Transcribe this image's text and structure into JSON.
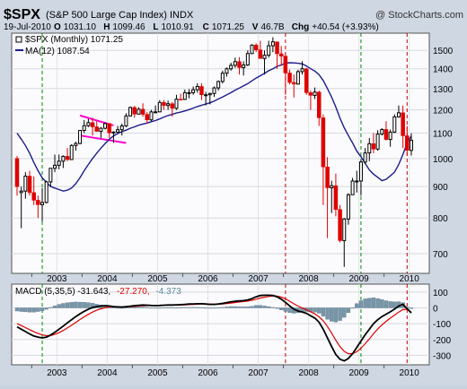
{
  "header": {
    "symbol": "$SPX",
    "name": "(S&P 500 Large Cap Index)",
    "exchange": "INDX",
    "watermark": "@ StockCharts.com",
    "date": "19-Jul-2010",
    "ohlc": [
      {
        "k": "O",
        "v": "1031.10"
      },
      {
        "k": "H",
        "v": "1099.46"
      },
      {
        "k": "L",
        "v": "1010.91"
      },
      {
        "k": "C",
        "v": "1071.25"
      },
      {
        "k": "V",
        "v": "46.7B"
      },
      {
        "k": "Chg",
        "v": "+40.54 (+3.93%)"
      }
    ]
  },
  "legend": {
    "price": "$SPX (Monthly) 1071.25",
    "ma": "MA(12) 1087.54"
  },
  "macd_legend": {
    "label": "MACD (5,35,5) -31.643,",
    "signal": "-27.270,",
    "hist": "-4.373"
  },
  "x_labels": [
    "2003",
    "2004",
    "2005",
    "2006",
    "2007",
    "2008",
    "2009",
    "2010"
  ],
  "y_labels": [
    "1500",
    "1400",
    "1300",
    "1200",
    "1100",
    "1000",
    "900",
    "800",
    "700"
  ],
  "macd_y_labels": [
    "100",
    "0",
    "-100",
    "-200",
    "-300"
  ],
  "colors": {
    "up": "#000000",
    "down": "#e00000",
    "ma": "#1c1c8c",
    "macd": "#000000",
    "signal": "#e00000",
    "histogram": "#7896a8",
    "trendline": "#ff00cc",
    "green_marker": "#008800",
    "red_marker": "#cc0000",
    "panel_bg": "#fbfbfd"
  },
  "chart_data": [
    {
      "type": "candlestick",
      "title": "$SPX (Monthly)",
      "scale": "log",
      "ylim": [
        650,
        1600
      ],
      "grid": true,
      "legend_position": "top-left",
      "x": [
        "2002-09",
        "2002-10",
        "2002-11",
        "2002-12",
        "2003-01",
        "2003-02",
        "2003-03",
        "2003-04",
        "2003-05",
        "2003-06",
        "2003-07",
        "2003-08",
        "2003-09",
        "2003-10",
        "2003-11",
        "2003-12",
        "2004-01",
        "2004-02",
        "2004-03",
        "2004-04",
        "2004-05",
        "2004-06",
        "2004-07",
        "2004-08",
        "2004-09",
        "2004-10",
        "2004-11",
        "2004-12",
        "2005-01",
        "2005-02",
        "2005-03",
        "2005-04",
        "2005-05",
        "2005-06",
        "2005-07",
        "2005-08",
        "2005-09",
        "2005-10",
        "2005-11",
        "2005-12",
        "2006-01",
        "2006-02",
        "2006-03",
        "2006-04",
        "2006-05",
        "2006-06",
        "2006-07",
        "2006-08",
        "2006-09",
        "2006-10",
        "2006-11",
        "2006-12",
        "2007-01",
        "2007-02",
        "2007-03",
        "2007-04",
        "2007-05",
        "2007-06",
        "2007-07",
        "2007-08",
        "2007-09",
        "2007-10",
        "2007-11",
        "2007-12",
        "2008-01",
        "2008-02",
        "2008-03",
        "2008-04",
        "2008-05",
        "2008-06",
        "2008-07",
        "2008-08",
        "2008-09",
        "2008-10",
        "2008-11",
        "2008-12",
        "2009-01",
        "2009-02",
        "2009-03",
        "2009-04",
        "2009-05",
        "2009-06",
        "2009-07",
        "2009-08",
        "2009-09",
        "2009-10",
        "2009-11",
        "2009-12",
        "2010-01",
        "2010-02",
        "2010-03",
        "2010-04",
        "2010-05",
        "2010-06",
        "2010-07"
      ],
      "ohlc": [
        [
          1000,
          1010,
          870,
          900
        ],
        [
          880,
          900,
          770,
          885
        ],
        [
          885,
          950,
          860,
          936
        ],
        [
          936,
          955,
          870,
          880
        ],
        [
          880,
          935,
          840,
          855
        ],
        [
          855,
          870,
          800,
          841
        ],
        [
          841,
          895,
          790,
          848
        ],
        [
          848,
          920,
          845,
          916
        ],
        [
          916,
          965,
          900,
          964
        ],
        [
          964,
          1015,
          950,
          975
        ],
        [
          975,
          1015,
          960,
          990
        ],
        [
          990,
          1012,
          965,
          1008
        ],
        [
          1008,
          1040,
          990,
          996
        ],
        [
          996,
          1055,
          995,
          1050
        ],
        [
          1050,
          1065,
          1030,
          1058
        ],
        [
          1058,
          1112,
          1055,
          1111
        ],
        [
          1111,
          1155,
          1100,
          1131
        ],
        [
          1131,
          1160,
          1125,
          1144
        ],
        [
          1144,
          1165,
          1090,
          1126
        ],
        [
          1126,
          1150,
          1105,
          1107
        ],
        [
          1107,
          1125,
          1080,
          1120
        ],
        [
          1120,
          1145,
          1115,
          1140
        ],
        [
          1140,
          1142,
          1080,
          1101
        ],
        [
          1101,
          1108,
          1060,
          1104
        ],
        [
          1104,
          1130,
          1100,
          1114
        ],
        [
          1114,
          1140,
          1090,
          1130
        ],
        [
          1130,
          1185,
          1125,
          1173
        ],
        [
          1173,
          1215,
          1170,
          1211
        ],
        [
          1211,
          1218,
          1165,
          1181
        ],
        [
          1181,
          1212,
          1180,
          1203
        ],
        [
          1203,
          1230,
          1170,
          1180
        ],
        [
          1180,
          1190,
          1140,
          1156
        ],
        [
          1156,
          1200,
          1150,
          1191
        ],
        [
          1191,
          1220,
          1190,
          1191
        ],
        [
          1191,
          1245,
          1190,
          1234
        ],
        [
          1234,
          1245,
          1200,
          1220
        ],
        [
          1220,
          1243,
          1200,
          1228
        ],
        [
          1228,
          1235,
          1170,
          1207
        ],
        [
          1207,
          1270,
          1200,
          1249
        ],
        [
          1249,
          1275,
          1245,
          1248
        ],
        [
          1248,
          1295,
          1245,
          1280
        ],
        [
          1280,
          1297,
          1253,
          1280
        ],
        [
          1280,
          1310,
          1270,
          1294
        ],
        [
          1294,
          1326,
          1280,
          1310
        ],
        [
          1310,
          1326,
          1245,
          1270
        ],
        [
          1270,
          1284,
          1220,
          1270
        ],
        [
          1270,
          1280,
          1225,
          1276
        ],
        [
          1276,
          1310,
          1260,
          1303
        ],
        [
          1303,
          1340,
          1290,
          1335
        ],
        [
          1335,
          1390,
          1325,
          1377
        ],
        [
          1377,
          1407,
          1360,
          1400
        ],
        [
          1400,
          1432,
          1390,
          1418
        ],
        [
          1418,
          1460,
          1405,
          1438
        ],
        [
          1438,
          1462,
          1370,
          1406
        ],
        [
          1406,
          1440,
          1365,
          1420
        ],
        [
          1420,
          1500,
          1415,
          1482
        ],
        [
          1482,
          1535,
          1480,
          1530
        ],
        [
          1530,
          1540,
          1490,
          1503
        ],
        [
          1503,
          1555,
          1455,
          1455
        ],
        [
          1455,
          1500,
          1370,
          1473
        ],
        [
          1473,
          1555,
          1460,
          1526
        ],
        [
          1526,
          1576,
          1490,
          1549
        ],
        [
          1549,
          1550,
          1400,
          1481
        ],
        [
          1481,
          1525,
          1415,
          1468
        ],
        [
          1468,
          1472,
          1270,
          1378
        ],
        [
          1378,
          1396,
          1320,
          1330
        ],
        [
          1330,
          1370,
          1257,
          1322
        ],
        [
          1322,
          1395,
          1320,
          1385
        ],
        [
          1385,
          1440,
          1370,
          1400
        ],
        [
          1400,
          1405,
          1270,
          1280
        ],
        [
          1280,
          1290,
          1200,
          1267
        ],
        [
          1267,
          1305,
          1250,
          1283
        ],
        [
          1283,
          1290,
          1130,
          1165
        ],
        [
          1165,
          1180,
          840,
          969
        ],
        [
          969,
          1005,
          742,
          896
        ],
        [
          896,
          920,
          815,
          903
        ],
        [
          903,
          945,
          805,
          826
        ],
        [
          826,
          840,
          730,
          735
        ],
        [
          735,
          800,
          666,
          797
        ],
        [
          797,
          878,
          780,
          873
        ],
        [
          873,
          930,
          875,
          919
        ],
        [
          919,
          955,
          880,
          919
        ],
        [
          919,
          995,
          870,
          987
        ],
        [
          987,
          1040,
          980,
          1021
        ],
        [
          1021,
          1080,
          990,
          1057
        ],
        [
          1057,
          1100,
          1020,
          1036
        ],
        [
          1036,
          1112,
          1030,
          1096
        ],
        [
          1096,
          1120,
          1090,
          1115
        ],
        [
          1115,
          1150,
          1070,
          1074
        ],
        [
          1074,
          1115,
          1045,
          1104
        ],
        [
          1104,
          1180,
          1100,
          1169
        ],
        [
          1169,
          1220,
          1165,
          1187
        ],
        [
          1187,
          1220,
          1040,
          1089
        ],
        [
          1089,
          1130,
          1010,
          1031
        ],
        [
          1031,
          1099,
          1011,
          1071
        ]
      ],
      "series": [
        {
          "name": "MA(12)",
          "values": [
            1100,
            1075,
            1050,
            1020,
            985,
            955,
            930,
            915,
            900,
            895,
            890,
            885,
            888,
            895,
            910,
            930,
            955,
            978,
            1000,
            1020,
            1040,
            1058,
            1075,
            1088,
            1098,
            1106,
            1112,
            1120,
            1126,
            1133,
            1138,
            1142,
            1148,
            1153,
            1160,
            1168,
            1175,
            1180,
            1186,
            1190,
            1195,
            1201,
            1208,
            1215,
            1221,
            1227,
            1232,
            1240,
            1250,
            1259,
            1270,
            1280,
            1292,
            1302,
            1313,
            1324,
            1338,
            1352,
            1364,
            1376,
            1390,
            1400,
            1413,
            1420,
            1430,
            1432,
            1431,
            1429,
            1426,
            1415,
            1400,
            1388,
            1370,
            1340,
            1300,
            1258,
            1213,
            1163,
            1122,
            1090,
            1060,
            1028,
            1007,
            982,
            958,
            943,
            932,
            920,
            925,
            937,
            950,
            978,
            1015,
            1060,
            1087.54
          ]
        }
      ]
    },
    {
      "type": "line",
      "title": "MACD (5,35,5)",
      "ylim": [
        -360,
        150
      ],
      "series": [
        {
          "name": "MACD",
          "values": [
            -120,
            -135,
            -150,
            -165,
            -178,
            -185,
            -190,
            -185,
            -172,
            -155,
            -135,
            -115,
            -95,
            -75,
            -55,
            -38,
            -22,
            -8,
            2,
            8,
            12,
            14,
            12,
            8,
            6,
            5,
            7,
            10,
            14,
            16,
            18,
            17,
            15,
            14,
            15,
            17,
            18,
            18,
            19,
            20,
            22,
            24,
            25,
            26,
            26,
            24,
            22,
            22,
            24,
            28,
            33,
            38,
            42,
            44,
            46,
            50,
            58,
            70,
            78,
            80,
            80,
            78,
            70,
            55,
            35,
            12,
            -8,
            -20,
            -26,
            -35,
            -50,
            -65,
            -90,
            -135,
            -190,
            -245,
            -295,
            -325,
            -335,
            -320,
            -290,
            -250,
            -210,
            -170,
            -135,
            -100,
            -75,
            -55,
            -40,
            -25,
            -8,
            12,
            22,
            -5,
            -31.643
          ]
        },
        {
          "name": "Signal",
          "values": [
            -100,
            -112,
            -125,
            -138,
            -151,
            -162,
            -171,
            -176,
            -175,
            -168,
            -157,
            -143,
            -127,
            -110,
            -92,
            -74,
            -57,
            -41,
            -27,
            -15,
            -6,
            1,
            5,
            6,
            6,
            6,
            6,
            7,
            9,
            11,
            13,
            14,
            15,
            15,
            15,
            16,
            17,
            17,
            18,
            18,
            19,
            21,
            22,
            23,
            24,
            24,
            24,
            23,
            23,
            25,
            27,
            30,
            34,
            37,
            40,
            43,
            48,
            55,
            62,
            68,
            72,
            75,
            74,
            68,
            57,
            42,
            26,
            11,
            -1,
            -12,
            -25,
            -38,
            -56,
            -82,
            -118,
            -160,
            -205,
            -245,
            -275,
            -290,
            -290,
            -277,
            -255,
            -227,
            -196,
            -164,
            -134,
            -108,
            -85,
            -65,
            -46,
            -27,
            -11,
            -9,
            -27.27
          ]
        },
        {
          "name": "Histogram",
          "values": [
            -20,
            -23,
            -25,
            -27,
            -27,
            -23,
            -19,
            -9,
            3,
            13,
            22,
            28,
            32,
            35,
            37,
            36,
            35,
            33,
            29,
            23,
            18,
            13,
            7,
            2,
            0,
            -1,
            1,
            3,
            5,
            5,
            5,
            3,
            0,
            -1,
            0,
            1,
            1,
            1,
            1,
            2,
            3,
            3,
            3,
            3,
            2,
            0,
            -2,
            -1,
            1,
            3,
            6,
            8,
            8,
            7,
            6,
            7,
            10,
            15,
            16,
            12,
            8,
            3,
            -4,
            -13,
            -22,
            -30,
            -34,
            -31,
            -25,
            -23,
            -25,
            -27,
            -34,
            -53,
            -72,
            -85,
            -90,
            -80,
            -60,
            -30,
            0,
            27,
            45,
            57,
            61,
            64,
            59,
            53,
            45,
            40,
            38,
            39,
            33,
            4,
            -4.373
          ]
        }
      ]
    }
  ]
}
